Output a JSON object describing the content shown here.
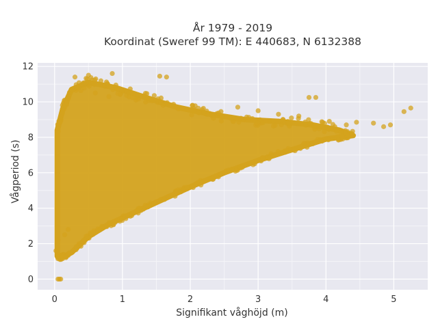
{
  "chart_data": {
    "type": "scatter",
    "title": "År 1979 - 2019",
    "subtitle": "Koordinat (Sweref 99 TM): E 440683, N 6132388",
    "xlabel": "Signifikant våghöjd (m)",
    "ylabel": "Vågperiod (s)",
    "xlim": [
      -0.25,
      5.5
    ],
    "ylim": [
      -0.6,
      12.2
    ],
    "xticks": [
      0,
      1,
      2,
      3,
      4,
      5
    ],
    "yticks": [
      0,
      2,
      4,
      6,
      8,
      10,
      12
    ],
    "grid": true,
    "legend": "none",
    "marker_color": "#d4a31e",
    "plot_background": "#e8e8f0",
    "series": [
      {
        "points": [
          [
            0.05,
            0.0
          ],
          [
            0.07,
            0.0
          ],
          [
            0.09,
            0.0
          ],
          [
            0.3,
            11.4
          ],
          [
            0.5,
            11.5
          ],
          [
            0.85,
            11.6
          ],
          [
            1.55,
            11.45
          ],
          [
            1.65,
            11.4
          ],
          [
            0.15,
            9.7
          ],
          [
            0.35,
            10.8
          ],
          [
            0.6,
            10.5
          ],
          [
            0.8,
            10.3
          ],
          [
            1.2,
            10.1
          ],
          [
            1.6,
            9.8
          ],
          [
            2.2,
            9.4
          ],
          [
            2.7,
            9.7
          ],
          [
            3.0,
            9.5
          ],
          [
            3.3,
            9.3
          ],
          [
            3.6,
            9.2
          ],
          [
            3.75,
            10.25
          ],
          [
            3.85,
            10.25
          ],
          [
            4.05,
            8.9
          ],
          [
            4.3,
            8.7
          ],
          [
            4.45,
            8.85
          ],
          [
            4.7,
            8.8
          ],
          [
            4.85,
            8.6
          ],
          [
            4.95,
            8.7
          ],
          [
            5.15,
            9.45
          ],
          [
            5.25,
            9.65
          ],
          [
            0.02,
            1.6
          ],
          [
            0.05,
            2.2
          ],
          [
            0.1,
            1.3
          ],
          [
            0.15,
            2.5
          ],
          [
            0.2,
            2.8
          ]
        ]
      }
    ],
    "envelope": {
      "upper": [
        [
          0.04,
          8.4
        ],
        [
          0.12,
          9.6
        ],
        [
          0.25,
          10.7
        ],
        [
          0.5,
          11.1
        ],
        [
          0.9,
          10.8
        ],
        [
          1.3,
          10.3
        ],
        [
          1.8,
          9.7
        ],
        [
          2.3,
          9.3
        ],
        [
          2.8,
          9.0
        ],
        [
          3.3,
          8.9
        ],
        [
          3.8,
          8.7
        ],
        [
          4.2,
          8.4
        ],
        [
          4.4,
          8.1
        ]
      ],
      "lower": [
        [
          0.04,
          1.3
        ],
        [
          0.1,
          1.2
        ],
        [
          0.25,
          1.5
        ],
        [
          0.5,
          2.4
        ],
        [
          0.8,
          3.1
        ],
        [
          1.2,
          3.8
        ],
        [
          1.6,
          4.5
        ],
        [
          2.0,
          5.2
        ],
        [
          2.5,
          6.0
        ],
        [
          3.0,
          6.7
        ],
        [
          3.5,
          7.3
        ],
        [
          4.0,
          7.9
        ],
        [
          4.4,
          8.1
        ]
      ]
    }
  }
}
